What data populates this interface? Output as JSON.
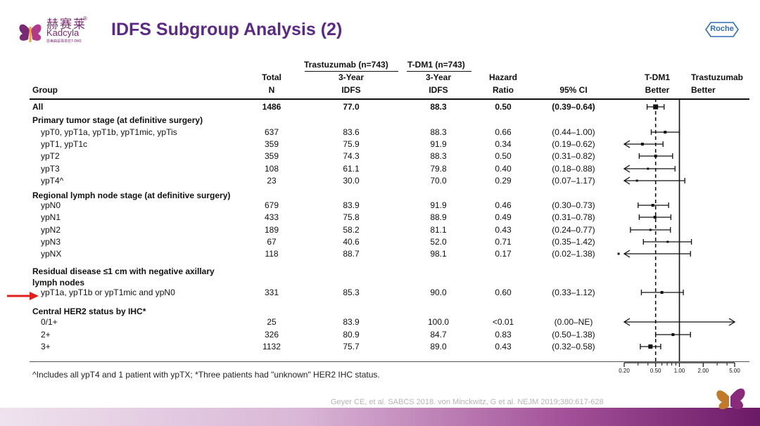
{
  "logo": {
    "chinese": "赫赛莱",
    "english": "Kadcyla",
    "subtitle": "恩美曲妥珠单抗T-DM1",
    "reg": "®"
  },
  "title": "IDFS Subgroup Analysis (2)",
  "brand": "Roche",
  "headers": {
    "group": "Group",
    "total_line1": "Total",
    "total_line2": "N",
    "trast_top": "Trastuzumab (n=743)",
    "tdm1_top": "T-DM1 (n=743)",
    "trast_line1": "3-Year",
    "trast_line2": "IDFS",
    "tdm1_line1": "3-Year",
    "tdm1_line2": "IDFS",
    "hr_line1": "Hazard",
    "hr_line2": "Ratio",
    "ci": "95% CI",
    "tdm1_better_1": "T-DM1",
    "tdm1_better_2": "Better",
    "trast_better_1": "Trastuzumab",
    "trast_better_2": "Better"
  },
  "sections": {
    "s1": "Primary tumor stage (at definitive surgery)",
    "s2": "Regional lymph node stage (at definitive surgery)",
    "s3a": "Residual disease ≤1 cm with negative axillary",
    "s3b": "lymph nodes",
    "s4": "Central HER2 status by IHC*"
  },
  "chart_data": {
    "type": "forest",
    "xscale": "log",
    "xlim": [
      0.2,
      5.0
    ],
    "ticks": [
      "0.20",
      "0.50",
      "1.00",
      "2.00",
      "5.00"
    ],
    "reference_line": 1.0,
    "overall_line": 0.5,
    "rows": [
      {
        "label": "All",
        "n": "1486",
        "trast": "77.0",
        "tdm1": "88.3",
        "hr_text": "0.50",
        "ci_text": "(0.39–0.64)",
        "hr": 0.5,
        "lo": 0.39,
        "hi": 0.64,
        "bold": true
      },
      {
        "label": "ypT0, ypT1a, ypT1b, ypT1mic, ypTis",
        "n": "637",
        "trast": "83.6",
        "tdm1": "88.3",
        "hr_text": "0.66",
        "ci_text": "(0.44–1.00)",
        "hr": 0.66,
        "lo": 0.44,
        "hi": 1.0
      },
      {
        "label": "ypT1, ypT1c",
        "n": "359",
        "trast": "75.9",
        "tdm1": "91.9",
        "hr_text": "0.34",
        "ci_text": "(0.19–0.62)",
        "hr": 0.34,
        "lo": 0.19,
        "hi": 0.62
      },
      {
        "label": "ypT2",
        "n": "359",
        "trast": "74.3",
        "tdm1": "88.3",
        "hr_text": "0.50",
        "ci_text": "(0.31–0.82)",
        "hr": 0.5,
        "lo": 0.31,
        "hi": 0.82
      },
      {
        "label": "ypT3",
        "n": "108",
        "trast": "61.1",
        "tdm1": "79.8",
        "hr_text": "0.40",
        "ci_text": "(0.18–0.88)",
        "hr": 0.4,
        "lo": 0.18,
        "hi": 0.88
      },
      {
        "label": "ypT4^",
        "n": "23",
        "trast": "30.0",
        "tdm1": "70.0",
        "hr_text": "0.29",
        "ci_text": "(0.07–1.17)",
        "hr": 0.29,
        "lo": 0.07,
        "hi": 1.17
      },
      {
        "label": "ypN0",
        "n": "679",
        "trast": "83.9",
        "tdm1": "91.9",
        "hr_text": "0.46",
        "ci_text": "(0.30–0.73)",
        "hr": 0.46,
        "lo": 0.3,
        "hi": 0.73
      },
      {
        "label": "ypN1",
        "n": "433",
        "trast": "75.8",
        "tdm1": "88.9",
        "hr_text": "0.49",
        "ci_text": "(0.31–0.78)",
        "hr": 0.49,
        "lo": 0.31,
        "hi": 0.78
      },
      {
        "label": "ypN2",
        "n": "189",
        "trast": "58.2",
        "tdm1": "81.1",
        "hr_text": "0.43",
        "ci_text": "(0.24–0.77)",
        "hr": 0.43,
        "lo": 0.24,
        "hi": 0.77
      },
      {
        "label": "ypN3",
        "n": "67",
        "trast": "40.6",
        "tdm1": "52.0",
        "hr_text": "0.71",
        "ci_text": "(0.35–1.42)",
        "hr": 0.71,
        "lo": 0.35,
        "hi": 1.42
      },
      {
        "label": "ypNX",
        "n": "118",
        "trast": "88.7",
        "tdm1": "98.1",
        "hr_text": "0.17",
        "ci_text": "(0.02–1.38)",
        "hr": 0.17,
        "lo": 0.02,
        "hi": 1.38
      },
      {
        "label": "ypT1a, ypT1b or ypT1mic and ypN0",
        "n": "331",
        "trast": "85.3",
        "tdm1": "90.0",
        "hr_text": "0.60",
        "ci_text": "(0.33–1.12)",
        "hr": 0.6,
        "lo": 0.33,
        "hi": 1.12
      },
      {
        "label": "0/1+",
        "n": "25",
        "trast": "83.9",
        "tdm1": "100.0",
        "hr_text": "<0.01",
        "ci_text": "(0.00–NE)",
        "hr": null,
        "lo": 0.0,
        "hi": null
      },
      {
        "label": "2+",
        "n": "326",
        "trast": "80.9",
        "tdm1": "84.7",
        "hr_text": "0.83",
        "ci_text": "(0.50–1.38)",
        "hr": 0.83,
        "lo": 0.5,
        "hi": 1.38
      },
      {
        "label": "3+",
        "n": "1132",
        "trast": "75.7",
        "tdm1": "89.0",
        "hr_text": "0.43",
        "ci_text": "(0.32–0.58)",
        "hr": 0.43,
        "lo": 0.32,
        "hi": 0.58
      }
    ]
  },
  "footnote": "^Includes all ypT4 and 1 patient with ypTX; *Three patients had \"unknown\" HER2 IHC status.",
  "citation": "Geyer CE, et al.  SABCS 2018. von Minckwitz, G et al. NEJM 2019;380:617-628"
}
